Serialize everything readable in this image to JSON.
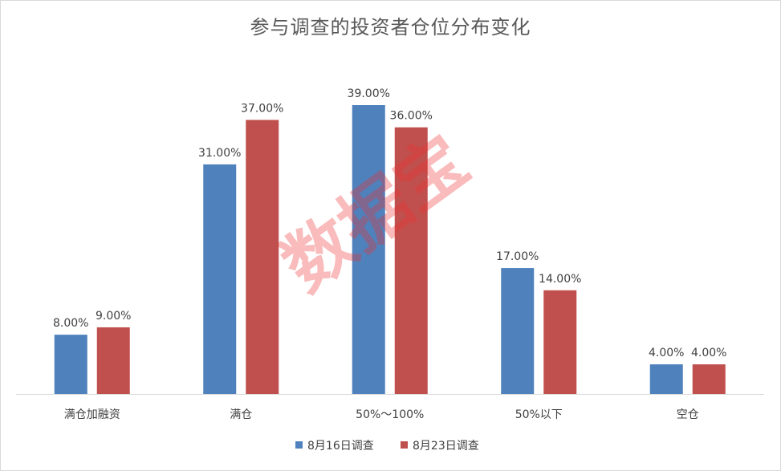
{
  "chart_data": {
    "type": "bar",
    "title": "参与调查的投资者仓位分布变化",
    "categories": [
      "满仓加融资",
      "满仓",
      "50%～100%",
      "50%以下",
      "空仓"
    ],
    "series": [
      {
        "name": "8月16日调查",
        "color": "#4f81bd",
        "values": [
          8.0,
          31.0,
          39.0,
          17.0,
          4.0
        ],
        "labels": [
          "8.00%",
          "31.00%",
          "39.00%",
          "17.00%",
          "4.00%"
        ]
      },
      {
        "name": "8月23日调查",
        "color": "#c0504d",
        "values": [
          9.0,
          37.0,
          36.0,
          14.0,
          4.0
        ],
        "labels": [
          "9.00%",
          "37.00%",
          "36.00%",
          "14.00%",
          "4.00%"
        ]
      }
    ],
    "xlabel": "",
    "ylabel": "",
    "ylim": [
      0,
      40
    ],
    "grid": false,
    "legend": "bottom"
  },
  "watermark": "数据宝"
}
